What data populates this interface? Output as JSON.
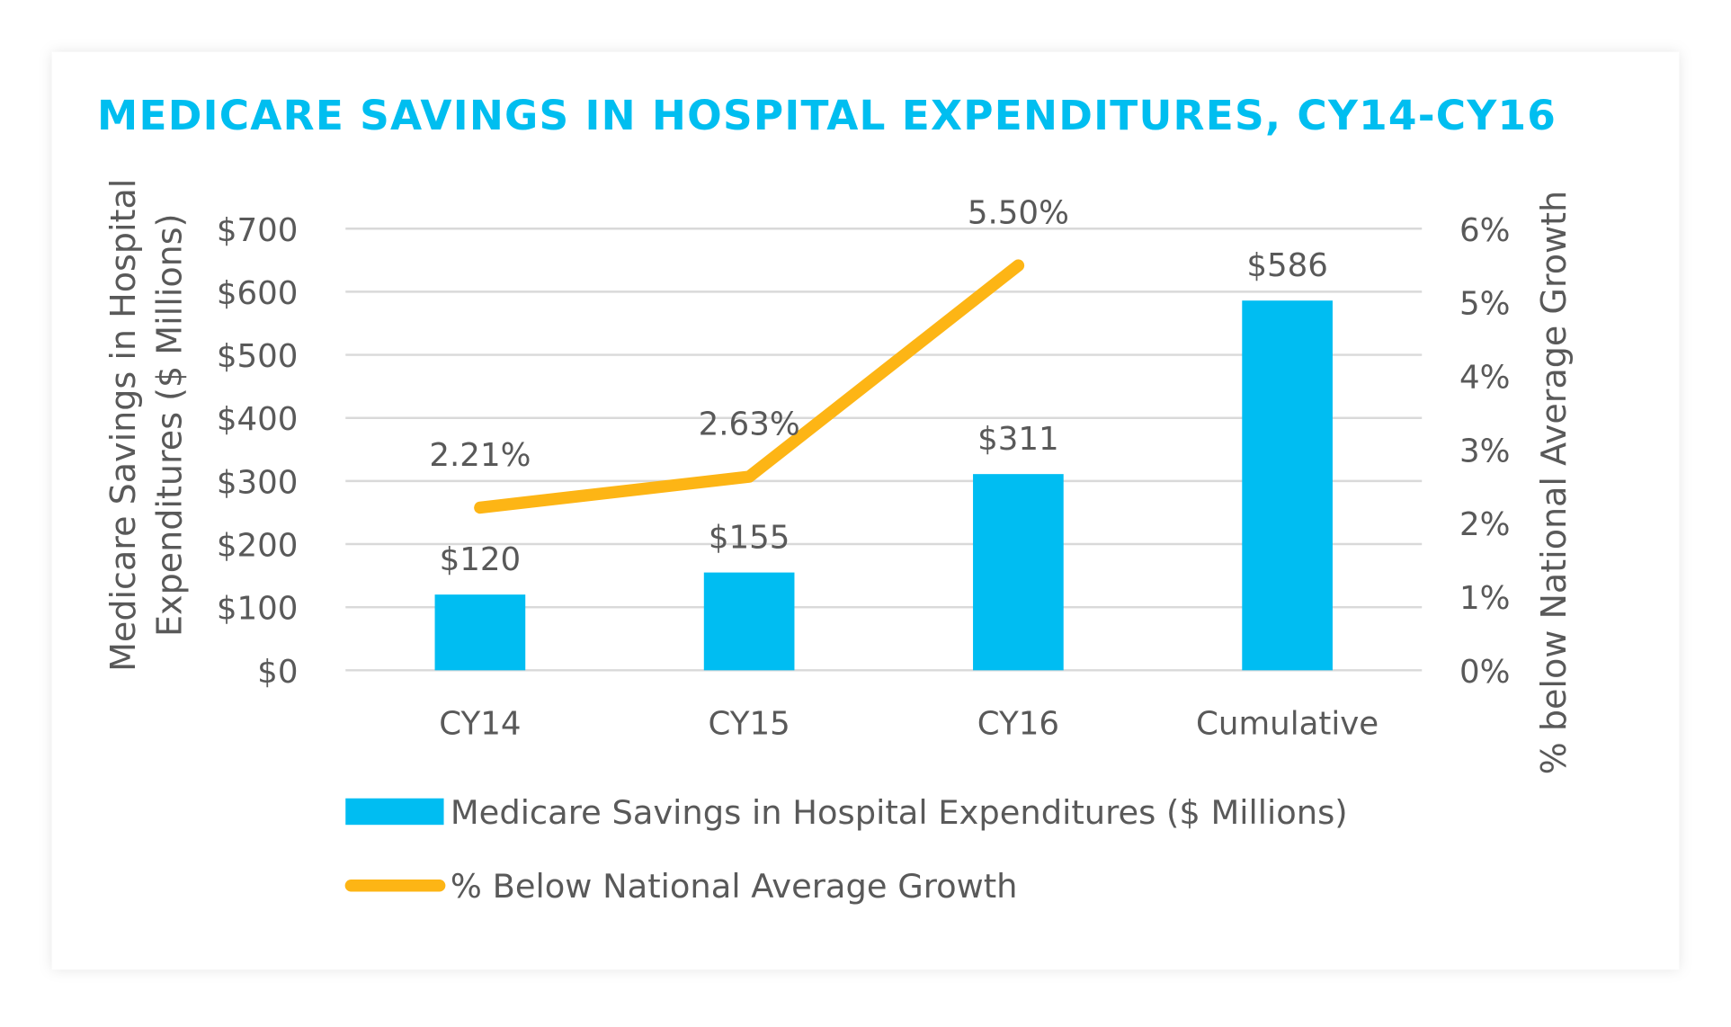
{
  "chart_data": {
    "type": "bar+line",
    "title": "MEDICARE SAVINGS IN HOSPITAL EXPENDITURES, CY14-CY16",
    "categories": [
      "CY14",
      "CY15",
      "CY16",
      "Cumulative"
    ],
    "ylabel_left": [
      "Medicare Savings in Hospital",
      "Expenditures ($ Millions)"
    ],
    "ylabel_right": "% below National Average Growth",
    "ylim_left": [
      0,
      700
    ],
    "ylim_right": [
      0,
      6
    ],
    "yticks_left": [
      "$0",
      "$100",
      "$200",
      "$300",
      "$400",
      "$500",
      "$600",
      "$700"
    ],
    "yticks_right": [
      "0%",
      "1%",
      "2%",
      "3%",
      "4%",
      "5%",
      "6%"
    ],
    "grid": true,
    "legend_position": "bottom",
    "series": [
      {
        "name": "Medicare Savings in Hospital Expenditures ($ Millions)",
        "type": "bar",
        "axis": "left",
        "values": [
          120,
          155,
          311,
          586
        ],
        "labels": [
          "$120",
          "$155",
          "$311",
          "$586"
        ],
        "color": "#00BDF2"
      },
      {
        "name": "% Below National Average Growth",
        "type": "line",
        "axis": "right",
        "values": [
          2.21,
          2.63,
          5.5,
          null
        ],
        "labels": [
          "2.21%",
          "2.63%",
          "5.50%",
          null
        ],
        "color": "#FDB515"
      }
    ]
  }
}
